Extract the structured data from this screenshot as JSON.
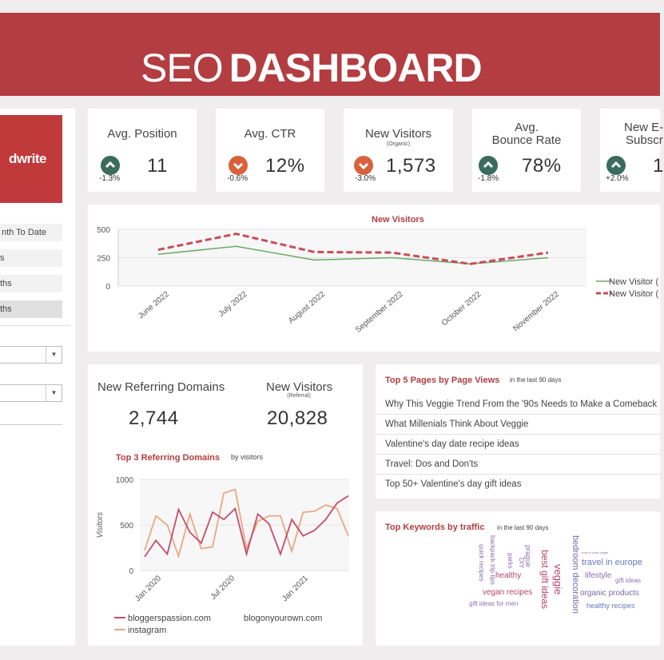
{
  "header": {
    "title_light": "SEO",
    "title_bold": "DASHBOARD"
  },
  "sidebar": {
    "logo_text": "dwrite",
    "periods": [
      "nth To Date",
      "s",
      "ths",
      "ths"
    ]
  },
  "kpis": [
    {
      "title": "Avg. Position",
      "subtitle": "",
      "delta": "-1.3%",
      "value": "11",
      "trend": "up",
      "icon": "chevron-up-icon",
      "icon_color": "#3b6b5c"
    },
    {
      "title": "Avg. CTR",
      "subtitle": "",
      "delta": "-0.6%",
      "value": "12%",
      "trend": "down",
      "icon": "chevron-down-icon",
      "icon_color": "#d9623b"
    },
    {
      "title": "New Visitors",
      "subtitle": "(Organic)",
      "delta": "-3.0%",
      "value": "1,573",
      "trend": "down",
      "icon": "chevron-down-icon",
      "icon_color": "#d9623b"
    },
    {
      "title_line1": "Avg.",
      "title_line2": "Bounce Rate",
      "delta": "-1.8%",
      "value": "78%",
      "trend": "up",
      "icon": "chevron-up-icon",
      "icon_color": "#3b6b5c"
    },
    {
      "title_line1": "New E-",
      "title_line2": "Subscr",
      "delta": "+2.0%",
      "value": "1",
      "trend": "up",
      "icon": "chevron-up-icon",
      "icon_color": "#3b6b5c"
    }
  ],
  "referral": {
    "domains_label": "New Referring Domains",
    "domains_value": "2,744",
    "visitors_label": "New Visitors",
    "visitors_sub": "(Referral)",
    "visitors_value": "20,828"
  },
  "top_pages": {
    "title": "Top 5 Pages by Page Views",
    "subtitle": "in the last 90 days",
    "rows": [
      "Why This Veggie Trend From the '90s Needs to Make a Comeback",
      "What Millenials Think About Veggie",
      "Valentine's day date recipe ideas",
      "Travel: Dos and Don'ts",
      "Top 50+ Valentine's day gift ideas"
    ]
  },
  "keywords": {
    "title": "Top Keywords by traffic",
    "subtitle": "in the last 90 days",
    "words": [
      {
        "text": "backpack trip tips",
        "color": "#8a6fb0",
        "size": 8,
        "vertical": true
      },
      {
        "text": "quick recipes",
        "color": "#8a6fb0",
        "size": 8,
        "vertical": true
      },
      {
        "text": "parks",
        "color": "#8a6fb0",
        "size": 8,
        "vertical": true
      },
      {
        "text": "DIY",
        "color": "#8a6fb0",
        "size": 8,
        "vertical": true
      },
      {
        "text": "prague",
        "color": "#8a6fb0",
        "size": 9,
        "vertical": true
      },
      {
        "text": "healthy",
        "color": "#b5476a",
        "size": 10,
        "vertical": false
      },
      {
        "text": "best gift ideas",
        "color": "#b5476a",
        "size": 12,
        "vertical": true
      },
      {
        "text": "veggie",
        "color": "#b5476a",
        "size": 13,
        "vertical": true
      },
      {
        "text": "bedroom decoration",
        "color": "#7a6aa8",
        "size": 11,
        "vertical": true
      },
      {
        "text": "vegan recipes",
        "color": "#b5476a",
        "size": 10,
        "vertical": false
      },
      {
        "text": "gift ideas for men",
        "color": "#8a6fb0",
        "size": 8,
        "vertical": false
      },
      {
        "text": "how to cook vegan",
        "color": "#8a6fb0",
        "size": 4,
        "vertical": false
      },
      {
        "text": "travel in europe",
        "color": "#6a78b8",
        "size": 11,
        "vertical": false
      },
      {
        "text": "lifestyle",
        "color": "#8a6fb0",
        "size": 10,
        "vertical": false
      },
      {
        "text": "gift ideas",
        "color": "#8a6fb0",
        "size": 8,
        "vertical": false
      },
      {
        "text": "organic products",
        "color": "#7a6aa8",
        "size": 10,
        "vertical": false
      },
      {
        "text": "healthy recipes",
        "color": "#6a78b8",
        "size": 9,
        "vertical": false
      }
    ]
  },
  "chart_data": [
    {
      "type": "line",
      "title": "New Visitors",
      "categories": [
        "June 2022",
        "July 2022",
        "August 2022",
        "September 2022",
        "October 2022",
        "November 2022"
      ],
      "ylim": [
        0,
        500
      ],
      "yticks": [
        "0",
        "250",
        "500"
      ],
      "grid": true,
      "legend": "right",
      "series": [
        {
          "name": "New Visitor (",
          "values": [
            280,
            350,
            230,
            250,
            195,
            250
          ],
          "color": "#6aaa64",
          "dashed": false
        },
        {
          "name": "New Visitor (",
          "values": [
            320,
            460,
            300,
            295,
            195,
            295
          ],
          "color": "#c84c5a",
          "dashed": true
        }
      ]
    },
    {
      "type": "line",
      "title": "Top 3 Referring Domains",
      "subtitle": "by visitors",
      "ylabel": "Visitors",
      "ylim": [
        0,
        1000
      ],
      "yticks": [
        "0",
        "500",
        "1000"
      ],
      "xticks": [
        "Jan 2020",
        "Jul 2020",
        "Jan 2021"
      ],
      "grid": true,
      "legend": "bottom",
      "series": [
        {
          "name": "bloggerspassion.com",
          "color": "#c84c6a",
          "values": [
            150,
            330,
            180,
            670,
            420,
            300,
            640,
            560,
            680,
            180,
            620,
            510,
            180,
            560,
            380,
            440,
            560,
            740,
            820
          ]
        },
        {
          "name": "blogonyourown.com",
          "color": "#999999",
          "values": []
        },
        {
          "name": "instagram",
          "color": "#e8a882",
          "values": [
            220,
            600,
            500,
            160,
            620,
            240,
            260,
            850,
            890,
            240,
            540,
            600,
            600,
            210,
            640,
            650,
            720,
            680,
            380
          ]
        }
      ]
    }
  ]
}
